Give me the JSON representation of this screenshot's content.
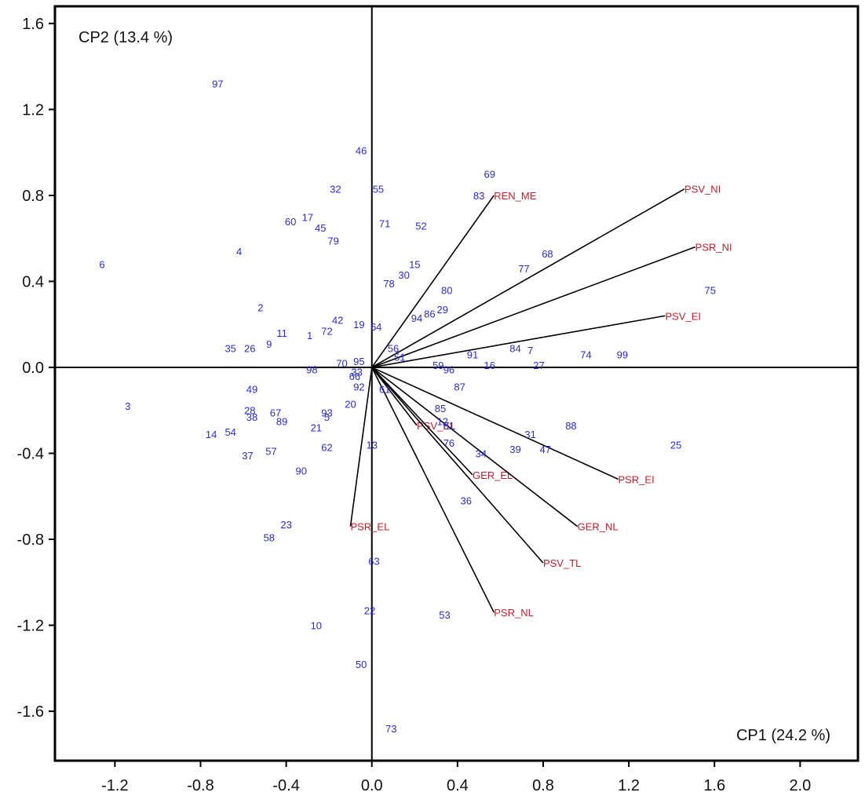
{
  "chart_data": {
    "type": "scatter",
    "subtype": "pca-biplot",
    "xlabel": "CP1 (24.2 %)",
    "ylabel": "CP2 (13.4 %)",
    "xlim": [
      -1.48,
      2.27
    ],
    "ylim": [
      -1.83,
      1.68
    ],
    "xticks": [
      -1.2,
      -0.8,
      -0.4,
      0.0,
      0.4,
      0.8,
      1.2,
      1.6,
      2.0
    ],
    "xtick_labels": [
      "-1.2",
      "-0.8",
      "-0.4",
      "0.0",
      "0.4",
      "0.8",
      "1.2",
      "1.6",
      "2.0"
    ],
    "yticks": [
      1.6,
      1.2,
      0.8,
      0.4,
      0.0,
      -0.4,
      -0.8,
      -1.2,
      -1.6
    ],
    "ytick_labels": [
      "1.6",
      "1.2",
      "0.8",
      "0.4",
      "0.0",
      "-0.4",
      "-0.8",
      "-1.2",
      "-1.6"
    ],
    "grid": false,
    "colors": {
      "observation": "#2b2bd6",
      "variable": "#c0202a",
      "axis": "#000000",
      "frame": "#000000"
    },
    "observations": [
      {
        "label": "97",
        "x": -0.72,
        "y": 1.32
      },
      {
        "label": "46",
        "x": -0.05,
        "y": 1.01
      },
      {
        "label": "69",
        "x": 0.55,
        "y": 0.9
      },
      {
        "label": "32",
        "x": -0.17,
        "y": 0.83
      },
      {
        "label": "55",
        "x": 0.03,
        "y": 0.83
      },
      {
        "label": "83",
        "x": 0.5,
        "y": 0.8
      },
      {
        "label": "60",
        "x": -0.38,
        "y": 0.68
      },
      {
        "label": "17",
        "x": -0.3,
        "y": 0.7
      },
      {
        "label": "45",
        "x": -0.24,
        "y": 0.65
      },
      {
        "label": "71",
        "x": 0.06,
        "y": 0.67
      },
      {
        "label": "52",
        "x": 0.23,
        "y": 0.66
      },
      {
        "label": "79",
        "x": -0.18,
        "y": 0.59
      },
      {
        "label": "4",
        "x": -0.62,
        "y": 0.54
      },
      {
        "label": "6",
        "x": -1.26,
        "y": 0.48
      },
      {
        "label": "68",
        "x": 0.82,
        "y": 0.53
      },
      {
        "label": "77",
        "x": 0.71,
        "y": 0.46
      },
      {
        "label": "15",
        "x": 0.2,
        "y": 0.48
      },
      {
        "label": "30",
        "x": 0.15,
        "y": 0.43
      },
      {
        "label": "78",
        "x": 0.08,
        "y": 0.39
      },
      {
        "label": "80",
        "x": 0.35,
        "y": 0.36
      },
      {
        "label": "75",
        "x": 1.58,
        "y": 0.36
      },
      {
        "label": "2",
        "x": -0.52,
        "y": 0.28
      },
      {
        "label": "29",
        "x": 0.33,
        "y": 0.27
      },
      {
        "label": "86",
        "x": 0.27,
        "y": 0.25
      },
      {
        "label": "94",
        "x": 0.21,
        "y": 0.23
      },
      {
        "label": "42",
        "x": -0.16,
        "y": 0.22
      },
      {
        "label": "19",
        "x": -0.06,
        "y": 0.2
      },
      {
        "label": "64",
        "x": 0.02,
        "y": 0.19
      },
      {
        "label": "72",
        "x": -0.21,
        "y": 0.17
      },
      {
        "label": "11",
        "x": -0.42,
        "y": 0.16
      },
      {
        "label": "1",
        "x": -0.29,
        "y": 0.15
      },
      {
        "label": "9",
        "x": -0.48,
        "y": 0.11
      },
      {
        "label": "35",
        "x": -0.66,
        "y": 0.09
      },
      {
        "label": "26",
        "x": -0.57,
        "y": 0.09
      },
      {
        "label": "56",
        "x": 0.1,
        "y": 0.09
      },
      {
        "label": "84",
        "x": 0.67,
        "y": 0.09
      },
      {
        "label": "7",
        "x": 0.74,
        "y": 0.08
      },
      {
        "label": "91",
        "x": 0.47,
        "y": 0.06
      },
      {
        "label": "51",
        "x": 0.13,
        "y": 0.05
      },
      {
        "label": "74",
        "x": 1.0,
        "y": 0.06
      },
      {
        "label": "99",
        "x": 1.17,
        "y": 0.06
      },
      {
        "label": "95",
        "x": -0.06,
        "y": 0.03
      },
      {
        "label": "70",
        "x": -0.14,
        "y": 0.02
      },
      {
        "label": "16",
        "x": 0.55,
        "y": 0.01
      },
      {
        "label": "27",
        "x": 0.78,
        "y": 0.01
      },
      {
        "label": "59",
        "x": 0.31,
        "y": 0.01
      },
      {
        "label": "98",
        "x": -0.28,
        "y": -0.01
      },
      {
        "label": "96",
        "x": 0.36,
        "y": -0.01
      },
      {
        "label": "33",
        "x": -0.07,
        "y": -0.02
      },
      {
        "label": "66",
        "x": -0.08,
        "y": -0.04
      },
      {
        "label": "92",
        "x": -0.06,
        "y": -0.09
      },
      {
        "label": "87",
        "x": 0.41,
        "y": -0.09
      },
      {
        "label": "49",
        "x": -0.56,
        "y": -0.1
      },
      {
        "label": "61",
        "x": 0.06,
        "y": -0.1
      },
      {
        "label": "3",
        "x": -1.14,
        "y": -0.18
      },
      {
        "label": "20",
        "x": -0.1,
        "y": -0.17
      },
      {
        "label": "85",
        "x": 0.32,
        "y": -0.19
      },
      {
        "label": "28",
        "x": -0.57,
        "y": -0.2
      },
      {
        "label": "38",
        "x": -0.56,
        "y": -0.23
      },
      {
        "label": "67",
        "x": -0.45,
        "y": -0.21
      },
      {
        "label": "93",
        "x": -0.21,
        "y": -0.21
      },
      {
        "label": "89",
        "x": -0.42,
        "y": -0.25
      },
      {
        "label": "5",
        "x": -0.21,
        "y": -0.23
      },
      {
        "label": "12",
        "x": 0.33,
        "y": -0.25
      },
      {
        "label": "81",
        "x": 0.36,
        "y": -0.27
      },
      {
        "label": "88",
        "x": 0.93,
        "y": -0.27
      },
      {
        "label": "21",
        "x": -0.26,
        "y": -0.28
      },
      {
        "label": "14",
        "x": -0.75,
        "y": -0.31
      },
      {
        "label": "54",
        "x": -0.66,
        "y": -0.3
      },
      {
        "label": "31",
        "x": 0.74,
        "y": -0.31
      },
      {
        "label": "76",
        "x": 0.36,
        "y": -0.35
      },
      {
        "label": "13",
        "x": 0.0,
        "y": -0.36
      },
      {
        "label": "62",
        "x": -0.21,
        "y": -0.37
      },
      {
        "label": "25",
        "x": 1.42,
        "y": -0.36
      },
      {
        "label": "57",
        "x": -0.47,
        "y": -0.39
      },
      {
        "label": "37",
        "x": -0.58,
        "y": -0.41
      },
      {
        "label": "34",
        "x": 0.51,
        "y": -0.4
      },
      {
        "label": "39",
        "x": 0.67,
        "y": -0.38
      },
      {
        "label": "47",
        "x": 0.81,
        "y": -0.38
      },
      {
        "label": "90",
        "x": -0.33,
        "y": -0.48
      },
      {
        "label": "36",
        "x": 0.44,
        "y": -0.62
      },
      {
        "label": "23",
        "x": -0.4,
        "y": -0.73
      },
      {
        "label": "58",
        "x": -0.48,
        "y": -0.79
      },
      {
        "label": "63",
        "x": 0.01,
        "y": -0.9
      },
      {
        "label": "22",
        "x": -0.01,
        "y": -1.13
      },
      {
        "label": "53",
        "x": 0.34,
        "y": -1.15
      },
      {
        "label": "10",
        "x": -0.26,
        "y": -1.2
      },
      {
        "label": "50",
        "x": -0.05,
        "y": -1.38
      },
      {
        "label": "73",
        "x": 0.09,
        "y": -1.68
      }
    ],
    "variables": [
      {
        "label": "REN_ME",
        "x": 0.57,
        "y": 0.8
      },
      {
        "label": "PSV_NI",
        "x": 1.46,
        "y": 0.83
      },
      {
        "label": "PSR_NI",
        "x": 1.51,
        "y": 0.56
      },
      {
        "label": "PSV_EI",
        "x": 1.37,
        "y": 0.24
      },
      {
        "label": "PSV_EL",
        "x": 0.21,
        "y": -0.27
      },
      {
        "label": "GER_EL",
        "x": 0.47,
        "y": -0.5
      },
      {
        "label": "PSR_EI",
        "x": 1.15,
        "y": -0.52
      },
      {
        "label": "GER_NL",
        "x": 0.96,
        "y": -0.74
      },
      {
        "label": "PSV_TL",
        "x": 0.8,
        "y": -0.91
      },
      {
        "label": "PSR_NL",
        "x": 0.57,
        "y": -1.14
      },
      {
        "label": "PSR_EL",
        "x": -0.1,
        "y": -0.74
      }
    ]
  }
}
